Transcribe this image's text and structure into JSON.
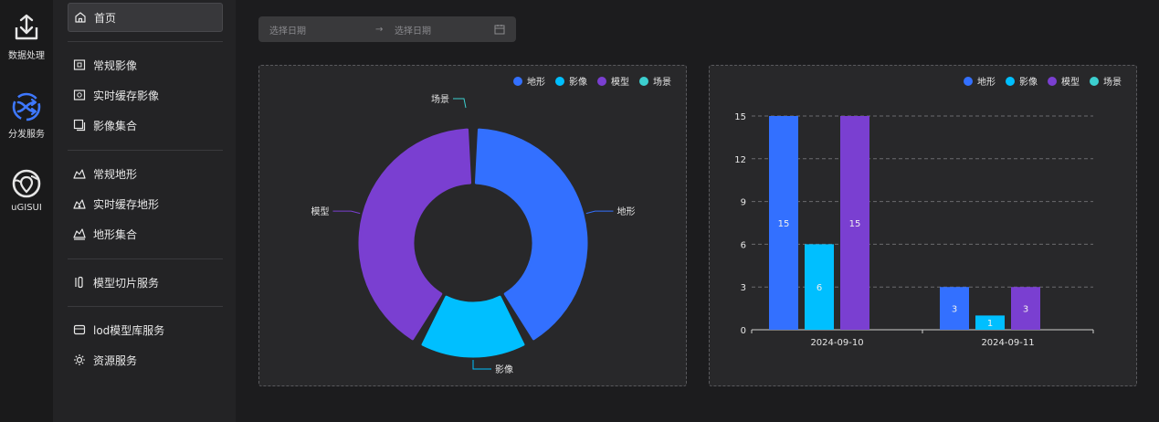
{
  "rail": {
    "items": [
      {
        "label": "数据处理",
        "icon": "download-tray-icon",
        "color": "#e6e6e6"
      },
      {
        "label": "分发服务",
        "icon": "distribute-icon",
        "color": "#3e78ff"
      },
      {
        "label": "uGISUI",
        "icon": "globe-pin-icon",
        "color": "#e6e6e6"
      }
    ]
  },
  "menu": {
    "items": [
      {
        "label": "首页",
        "icon": "home-icon",
        "active": true
      },
      {
        "label": "常规影像",
        "icon": "image-icon"
      },
      {
        "label": "实时缓存影像",
        "icon": "cache-image-icon"
      },
      {
        "label": "影像集合",
        "icon": "image-collection-icon"
      },
      {
        "label": "常规地形",
        "icon": "terrain-icon"
      },
      {
        "label": "实时缓存地形",
        "icon": "cache-terrain-icon"
      },
      {
        "label": "地形集合",
        "icon": "terrain-collection-icon"
      },
      {
        "label": "模型切片服务",
        "icon": "model-tile-icon"
      },
      {
        "label": "lod模型库服务",
        "icon": "lod-model-icon"
      },
      {
        "label": "资源服务",
        "icon": "resource-icon"
      }
    ]
  },
  "date_range": {
    "start_placeholder": "选择日期",
    "separator": "→",
    "end_placeholder": "选择日期"
  },
  "colors": {
    "地形": "#3370ff",
    "影像": "#00bfff",
    "模型": "#7a3fd1",
    "场景": "#3ccfcf"
  },
  "chart_data": [
    {
      "type": "pie",
      "variant": "donut",
      "legend": [
        "地形",
        "影像",
        "模型",
        "场景"
      ],
      "legend_position": "top-right",
      "slices": [
        {
          "name": "地形",
          "value": 18
        },
        {
          "name": "影像",
          "value": 7
        },
        {
          "name": "模型",
          "value": 18
        },
        {
          "name": "场景",
          "value": 0
        }
      ]
    },
    {
      "type": "bar",
      "legend": [
        "地形",
        "影像",
        "模型",
        "场景"
      ],
      "legend_position": "top-right",
      "categories": [
        "2024-09-10",
        "2024-09-11"
      ],
      "series": [
        {
          "name": "地形",
          "values": [
            15,
            3
          ]
        },
        {
          "name": "影像",
          "values": [
            6,
            1
          ]
        },
        {
          "name": "模型",
          "values": [
            15,
            3
          ]
        },
        {
          "name": "场景",
          "values": [
            0,
            0
          ]
        }
      ],
      "ylim": [
        0,
        15
      ],
      "yticks": [
        0,
        3,
        6,
        9,
        12,
        15
      ],
      "grid": true
    }
  ]
}
